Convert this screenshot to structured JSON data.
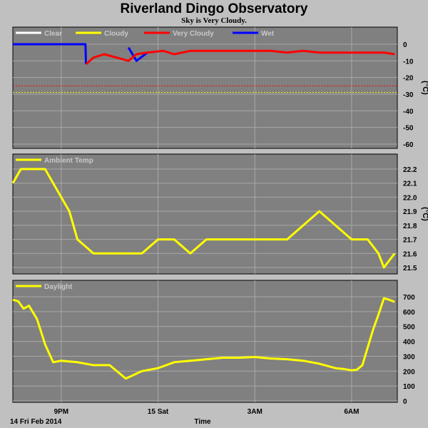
{
  "title": "Riverland Dingo Observatory",
  "subtitle": "Sky is Very Cloudy.",
  "footer": {
    "date": "14 Fri Feb 2014",
    "xlabel": "Time"
  },
  "colors": {
    "background": "#c0c0c0",
    "plot": "#808080",
    "grid": "#a8a8a8",
    "clear": "#ffffff",
    "cloudy": "#ffff00",
    "very_cloudy": "#ff0000",
    "wet": "#0000ff",
    "temp": "#ffff00",
    "daylight": "#ffff00"
  },
  "chart_data": [
    {
      "type": "line",
      "legend": [
        "Clear",
        "Cloudy",
        "Very Cloudy",
        "Wet"
      ],
      "ylabel": "(°C)",
      "ylim": [
        -60,
        0
      ],
      "yticks": [
        "0",
        "-10",
        "-20",
        "-30",
        "-40",
        "-50",
        "-60"
      ],
      "xticks": [
        "9PM",
        "15 Sat",
        "3AM",
        "6AM"
      ],
      "grid": true,
      "x": [
        "19:30",
        "21:45",
        "21:46",
        "22:00",
        "22:20",
        "23:05",
        "23:20",
        "23:40",
        "00:10",
        "00:30",
        "00:45",
        "01:00",
        "01:30",
        "02:00",
        "02:30",
        "03:00",
        "03:30",
        "04:00",
        "04:30",
        "05:00",
        "05:30",
        "06:00",
        "06:30",
        "07:00",
        "07:20"
      ],
      "series": [
        {
          "name": "Wet",
          "values": [
            0,
            0,
            -12,
            null,
            null,
            -2,
            -10,
            -5,
            null,
            -9,
            null,
            null,
            null,
            null,
            null,
            null,
            null,
            -3,
            null,
            null,
            null,
            null,
            null,
            null,
            null
          ]
        },
        {
          "name": "Very Cloudy",
          "values": [
            null,
            null,
            -12,
            -8,
            -6,
            -10,
            -6,
            -5,
            -4,
            -6,
            -5,
            -4,
            -4,
            -4,
            -4,
            -4,
            -4,
            -5,
            -4,
            -5,
            -5,
            -5,
            -5,
            -5,
            -6
          ]
        }
      ],
      "threshold_lines": [
        {
          "name": "Very Cloudy",
          "value": -25
        },
        {
          "name": "Cloudy",
          "value": -29
        }
      ]
    },
    {
      "type": "line",
      "legend": [
        "Ambient Temp"
      ],
      "ylabel": "(°C)",
      "ylim": [
        21.5,
        22.2
      ],
      "yticks": [
        "22.2",
        "22.1",
        "22.0",
        "21.9",
        "21.8",
        "21.7",
        "21.6",
        "21.5"
      ],
      "xticks": [
        "9PM",
        "15 Sat",
        "3AM",
        "6AM"
      ],
      "grid": true,
      "x": [
        "19:30",
        "19:45",
        "20:30",
        "20:45",
        "21:00",
        "21:15",
        "21:30",
        "22:00",
        "22:30",
        "23:00",
        "23:30",
        "00:00",
        "00:30",
        "01:00",
        "01:30",
        "02:00",
        "02:30",
        "03:00",
        "03:30",
        "04:00",
        "04:30",
        "05:00",
        "05:30",
        "06:00",
        "06:30",
        "06:50",
        "07:00",
        "07:20"
      ],
      "series": [
        {
          "name": "Ambient Temp",
          "values": [
            22.1,
            22.2,
            22.2,
            22.1,
            22.0,
            21.9,
            21.7,
            21.6,
            21.6,
            21.6,
            21.6,
            21.7,
            21.7,
            21.6,
            21.7,
            21.7,
            21.7,
            21.7,
            21.7,
            21.7,
            21.8,
            21.9,
            21.8,
            21.7,
            21.7,
            21.6,
            21.5,
            21.6
          ]
        }
      ]
    },
    {
      "type": "line",
      "legend": [
        "Daylight"
      ],
      "ylim": [
        0,
        700
      ],
      "yticks": [
        "700",
        "600",
        "500",
        "400",
        "300",
        "200",
        "100",
        "0"
      ],
      "xticks": [
        "9PM",
        "15 Sat",
        "3AM",
        "6AM"
      ],
      "grid": true,
      "x": [
        "19:30",
        "19:40",
        "19:50",
        "20:00",
        "20:15",
        "20:30",
        "20:45",
        "21:00",
        "21:30",
        "22:00",
        "22:30",
        "23:00",
        "23:30",
        "00:00",
        "00:30",
        "01:00",
        "01:30",
        "02:00",
        "02:30",
        "03:00",
        "03:30",
        "04:00",
        "04:30",
        "05:00",
        "05:30",
        "05:45",
        "06:00",
        "06:10",
        "06:20",
        "06:30",
        "06:40",
        "06:50",
        "07:00",
        "07:10",
        "07:20"
      ],
      "series": [
        {
          "name": "Daylight",
          "values": [
            680,
            670,
            620,
            640,
            550,
            380,
            260,
            270,
            260,
            240,
            240,
            150,
            200,
            220,
            260,
            270,
            280,
            290,
            290,
            295,
            285,
            280,
            270,
            250,
            220,
            215,
            205,
            210,
            240,
            360,
            480,
            580,
            690,
            680,
            665
          ]
        }
      ]
    }
  ]
}
